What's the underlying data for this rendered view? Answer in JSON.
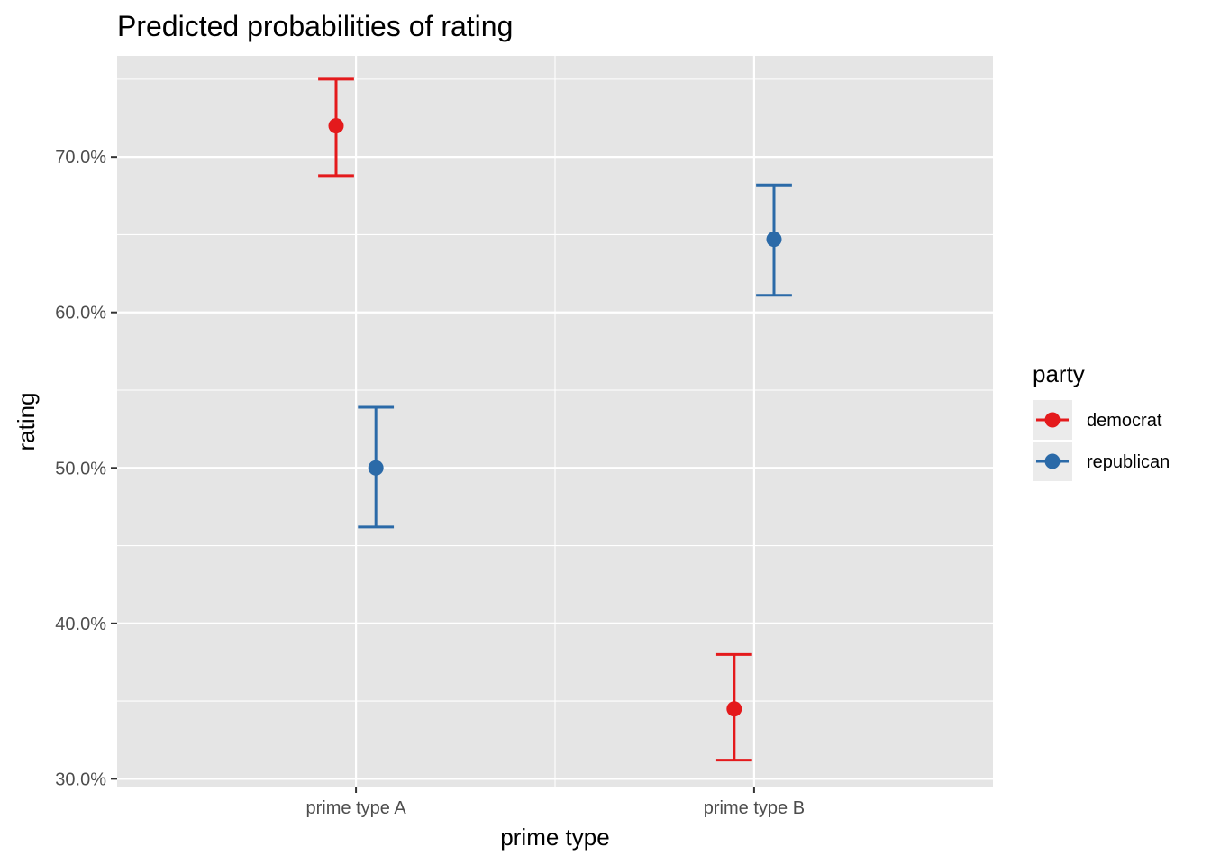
{
  "chart_data": {
    "type": "scatter",
    "title": "Predicted probabilities of rating",
    "xlabel": "prime type",
    "ylabel": "rating",
    "categories": [
      "prime type A",
      "prime type B"
    ],
    "ylim": [
      29.5,
      76.5
    ],
    "yticks": [
      30,
      40,
      50,
      60,
      70
    ],
    "ytick_labels": [
      "30.0%",
      "40.0%",
      "50.0%",
      "60.0%",
      "70.0%"
    ],
    "grid": true,
    "legend": {
      "title": "party",
      "placement": "right"
    },
    "series": [
      {
        "name": "democrat",
        "color": "#e41a1c",
        "values": [
          72.0,
          34.5
        ],
        "lower": [
          68.8,
          31.2
        ],
        "upper": [
          75.0,
          38.0
        ]
      },
      {
        "name": "republican",
        "color": "#2b6aa8",
        "values": [
          50.0,
          64.7
        ],
        "lower": [
          46.2,
          61.1
        ],
        "upper": [
          53.9,
          68.2
        ]
      }
    ]
  }
}
